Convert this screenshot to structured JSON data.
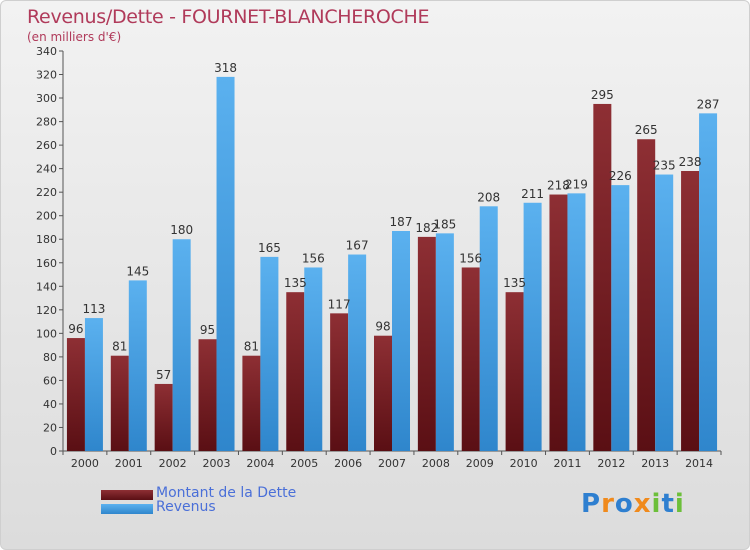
{
  "header": {
    "title": "Revenus/Dette - FOURNET-BLANCHEROCHE",
    "subtitle": "(en milliers d'€)"
  },
  "chart_data": {
    "type": "bar",
    "categories": [
      "2000",
      "2001",
      "2002",
      "2003",
      "2004",
      "2005",
      "2006",
      "2007",
      "2008",
      "2009",
      "2010",
      "2011",
      "2012",
      "2013",
      "2014"
    ],
    "series": [
      {
        "name": "Montant de la Dette",
        "color": "#7a1f24",
        "values": [
          96,
          81,
          57,
          95,
          81,
          135,
          117,
          98,
          182,
          156,
          135,
          218,
          295,
          265,
          238
        ]
      },
      {
        "name": "Revenus",
        "color": "#4aa3e6",
        "values": [
          113,
          145,
          180,
          318,
          165,
          156,
          167,
          187,
          185,
          208,
          211,
          219,
          226,
          235,
          287
        ]
      }
    ],
    "ylim": [
      0,
      340
    ],
    "yticks": [
      0,
      20,
      40,
      60,
      80,
      100,
      120,
      140,
      160,
      180,
      200,
      220,
      240,
      260,
      280,
      300,
      320,
      340
    ],
    "grid": false,
    "legend_position": "bottom-left"
  },
  "logo": {
    "text": "Proxiti",
    "letters": [
      {
        "ch": "P",
        "color": "#2e7fd0"
      },
      {
        "ch": "r",
        "color": "#f08a1c"
      },
      {
        "ch": "o",
        "color": "#2e7fd0"
      },
      {
        "ch": "x",
        "color": "#f08a1c"
      },
      {
        "ch": "i",
        "color": "#6cbf3a"
      },
      {
        "ch": "t",
        "color": "#2e7fd0"
      },
      {
        "ch": "i",
        "color": "#6cbf3a"
      }
    ]
  }
}
